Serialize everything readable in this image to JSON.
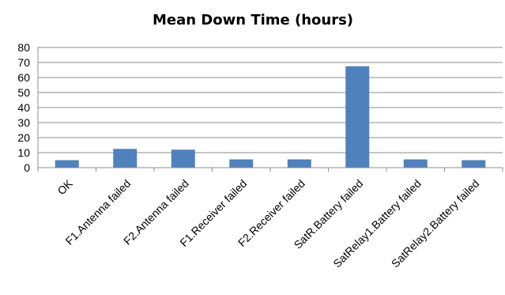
{
  "chart_data": {
    "type": "bar",
    "title": "Mean Down Time (hours)",
    "categories": [
      "OK",
      "F1.Antenna failed",
      "F2.Antenna failed",
      "F1.Receiver failed",
      "F2.Receiver failed",
      "SatR.Battery failed",
      "SatRelay1.Battery failed",
      "SatRelay2.Battery failed"
    ],
    "values": [
      5,
      12.5,
      12,
      5.5,
      5.5,
      67.5,
      5.5,
      5
    ],
    "ylim": [
      0,
      80
    ],
    "yticks": [
      "0",
      "10",
      "20",
      "30",
      "40",
      "50",
      "60",
      "70",
      "80"
    ],
    "grid": true,
    "legend": "none",
    "bar_color": "#4f81bd",
    "grid_color": "#8c8c8c"
  }
}
